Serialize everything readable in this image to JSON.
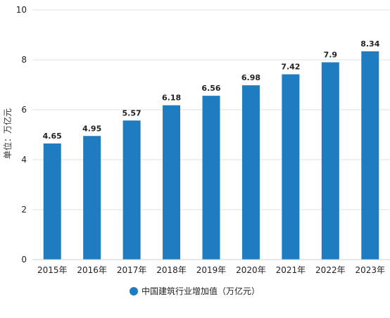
{
  "chart_data": {
    "type": "bar",
    "categories": [
      "2015年",
      "2016年",
      "2017年",
      "2018年",
      "2019年",
      "2020年",
      "2021年",
      "2022年",
      "2023年"
    ],
    "series": [
      {
        "name": "中国建筑行业增加值（万亿元）",
        "values": [
          4.65,
          4.95,
          5.57,
          6.18,
          6.56,
          6.98,
          7.42,
          7.9,
          8.34
        ]
      }
    ],
    "data_labels": [
      "4.65",
      "4.95",
      "5.57",
      "6.18",
      "6.56",
      "6.98",
      "7.42",
      "7.9",
      "8.34"
    ],
    "ylabel": "单位：万亿元",
    "xlabel": "",
    "ylim": [
      0,
      10
    ],
    "yticks": [
      0,
      2,
      4,
      6,
      8,
      10
    ],
    "grid": true,
    "legend_position": "bottom-center",
    "bar_color": "#1f7cc1"
  }
}
